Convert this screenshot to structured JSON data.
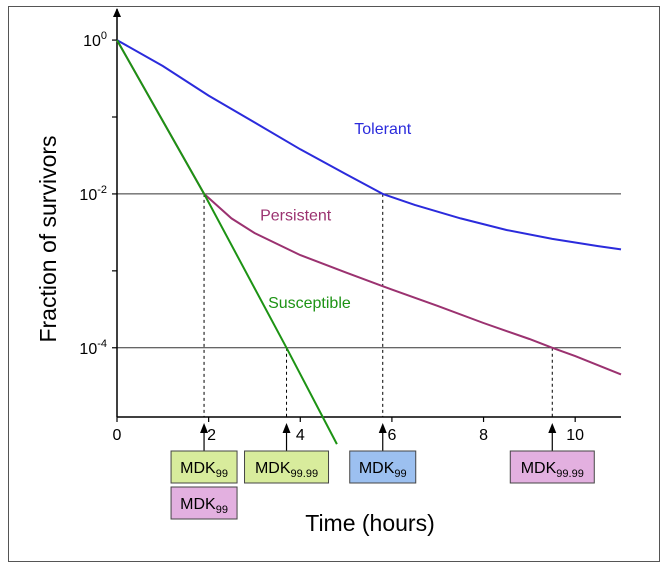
{
  "chart_data": {
    "type": "line",
    "xlabel": "Time (hours)",
    "ylabel": "Fraction of survivors",
    "xlim": [
      0,
      11
    ],
    "ylim_log10": [
      -4.9,
      0.3
    ],
    "y_scale": "log",
    "x_ticks": [
      {
        "value": 0,
        "label": "0"
      },
      {
        "value": 2,
        "label": "2"
      },
      {
        "value": 4,
        "label": "4"
      },
      {
        "value": 6,
        "label": "6"
      },
      {
        "value": 8,
        "label": "8"
      },
      {
        "value": 10,
        "label": "10"
      }
    ],
    "y_ticks": [
      {
        "value": 1,
        "log10": 0,
        "base": "10",
        "exp": "0"
      },
      {
        "value": 0.01,
        "log10": -2,
        "base": "10",
        "exp": "-2"
      },
      {
        "value": 0.0001,
        "log10": -4,
        "base": "10",
        "exp": "-4"
      }
    ],
    "reference_lines_log10": [
      -2,
      -4
    ],
    "series": [
      {
        "name": "Tolerant",
        "color": "#2b2bdc",
        "points": [
          [
            0,
            1
          ],
          [
            1,
            0.46
          ],
          [
            2,
            0.19
          ],
          [
            3,
            0.085
          ],
          [
            4,
            0.038
          ],
          [
            5,
            0.018
          ],
          [
            5.8,
            0.01
          ],
          [
            6.5,
            0.0072
          ],
          [
            7.5,
            0.0048
          ],
          [
            8.5,
            0.0034
          ],
          [
            9.5,
            0.0026
          ],
          [
            10.5,
            0.0021
          ],
          [
            11,
            0.0019
          ]
        ]
      },
      {
        "name": "Persistent",
        "color": "#9b3270",
        "points": [
          [
            0,
            1
          ],
          [
            1.9,
            0.01
          ],
          [
            2.5,
            0.0048
          ],
          [
            3,
            0.0031
          ],
          [
            4,
            0.0016
          ],
          [
            5,
            0.00095
          ],
          [
            6,
            0.00057
          ],
          [
            7,
            0.00035
          ],
          [
            8,
            0.00021
          ],
          [
            9,
            0.00013
          ],
          [
            9.5,
            0.0001
          ],
          [
            10,
            7.8e-05
          ],
          [
            11,
            4.5e-05
          ]
        ]
      },
      {
        "name": "Susceptible",
        "color": "#1d9314",
        "points": [
          [
            0,
            1
          ],
          [
            1.9,
            0.01
          ],
          [
            3.7,
            0.0001
          ],
          [
            4.8,
            5.6e-06
          ]
        ]
      }
    ],
    "annotations": [
      {
        "x": 1.9,
        "log10": -2,
        "boxes": [
          {
            "base": "MDK",
            "sub": "99",
            "color": "#d8ec9c"
          },
          {
            "base": "MDK",
            "sub": "99",
            "color": "#e3b0e0"
          }
        ]
      },
      {
        "x": 3.7,
        "log10": -4,
        "boxes": [
          {
            "base": "MDK",
            "sub": "99.99",
            "color": "#d8ec9c"
          }
        ]
      },
      {
        "x": 5.8,
        "log10": -2,
        "boxes": [
          {
            "base": "MDK",
            "sub": "99",
            "color": "#9cc0f0"
          }
        ]
      },
      {
        "x": 9.5,
        "log10": -4,
        "boxes": [
          {
            "base": "MDK",
            "sub": "99.99",
            "color": "#e3b0e0"
          }
        ]
      }
    ]
  }
}
